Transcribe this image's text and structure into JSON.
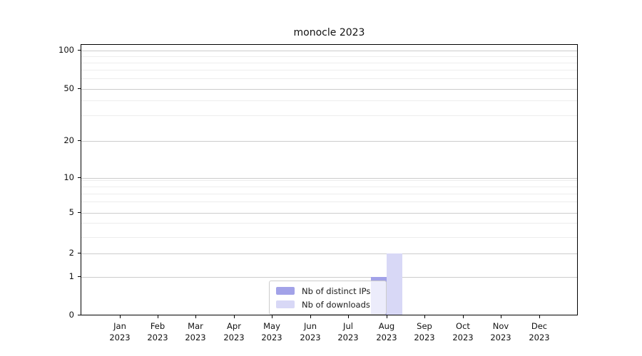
{
  "chart_data": {
    "type": "bar",
    "title": "monocle 2023",
    "categories": [
      "Jan",
      "Feb",
      "Mar",
      "Apr",
      "May",
      "Jun",
      "Jul",
      "Aug",
      "Sep",
      "Oct",
      "Nov",
      "Dec"
    ],
    "category_year": "2023",
    "series": [
      {
        "name": "Nb of distinct IPs",
        "color": "#a2a2e8",
        "values": [
          0,
          0,
          0,
          0,
          0,
          0,
          0,
          1,
          0,
          0,
          0,
          0
        ]
      },
      {
        "name": "Nb of downloads",
        "color": "#d8d8f6",
        "values": [
          0,
          0,
          0,
          0,
          0,
          0,
          0,
          2,
          0,
          0,
          0,
          0
        ]
      }
    ],
    "xlabel": "",
    "ylabel": "",
    "yaxis": {
      "scale": "asinh",
      "major_ticks": [
        0,
        1,
        2,
        5,
        10,
        20,
        50,
        100
      ],
      "minor_ticks": [
        3,
        4,
        6,
        7,
        8,
        9,
        30,
        40,
        60,
        70,
        80,
        90
      ],
      "range": [
        0,
        111
      ]
    },
    "grid": {
      "major_color": "#cccccc",
      "minor_color": "#ededed",
      "vertical": false
    },
    "legend": {
      "position": "lower-center",
      "frame": true
    }
  }
}
